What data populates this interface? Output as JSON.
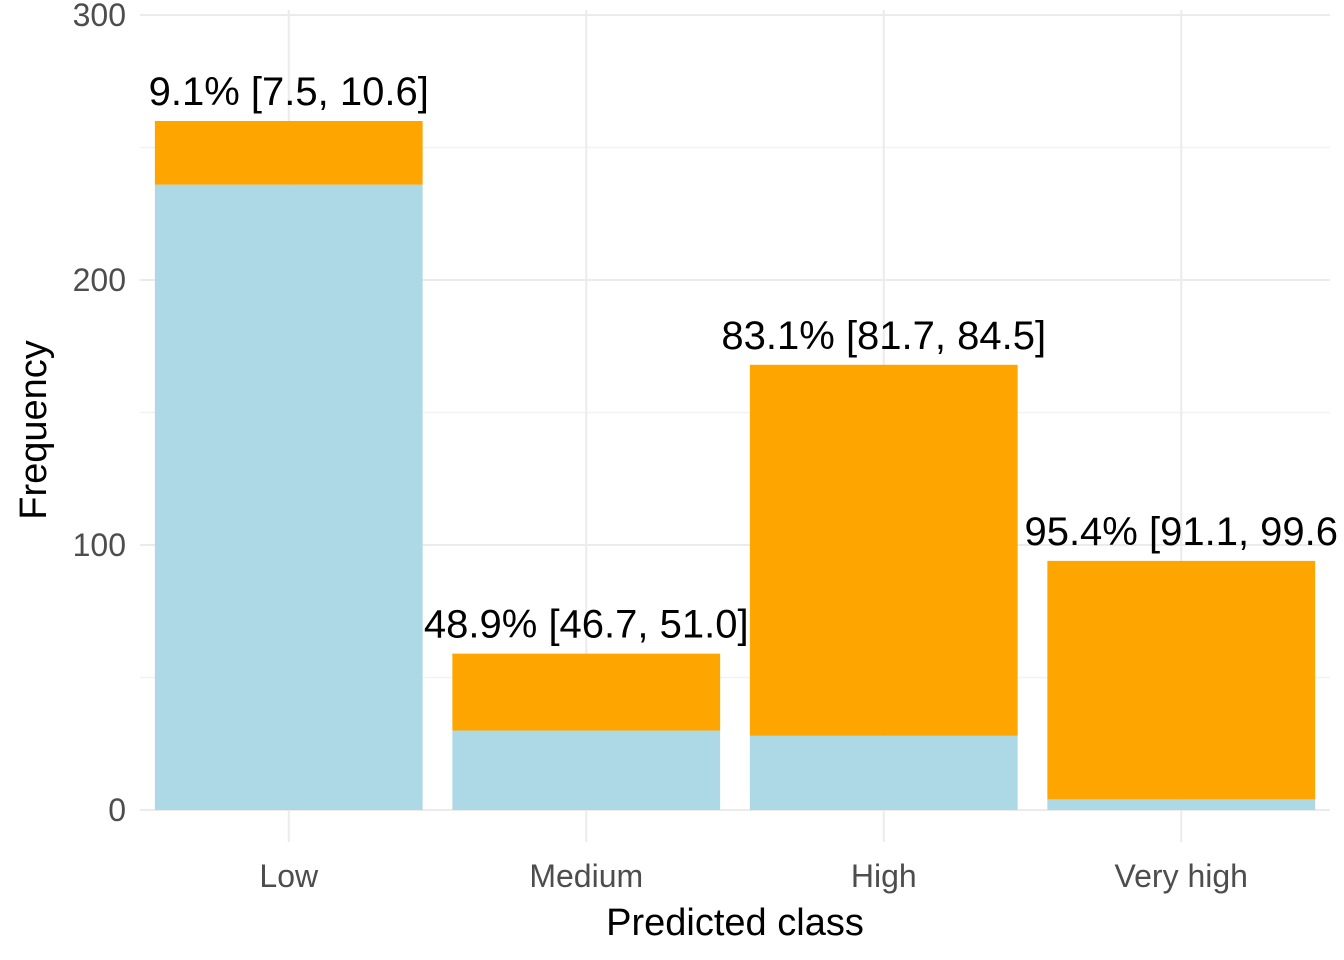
{
  "chart_data": {
    "type": "bar",
    "stacked": true,
    "xlabel": "Predicted class",
    "ylabel": "Frequency",
    "categories": [
      "Low",
      "Medium",
      "High",
      "Very high"
    ],
    "series": [
      {
        "values": [
          236,
          30,
          28,
          4
        ],
        "color": "#add8e6"
      },
      {
        "values": [
          24,
          29,
          140,
          90
        ],
        "color": "#ffa500"
      }
    ],
    "totals": [
      260,
      59,
      168,
      94
    ],
    "annotations": [
      "9.1% [7.5, 10.6]",
      "48.9% [46.7, 51.0]",
      "83.1% [81.7, 84.5]",
      "95.4% [91.1, 99.6"
    ],
    "ylim": [
      -12,
      300
    ],
    "yticks": [
      0,
      100,
      200,
      300
    ],
    "grid": true,
    "legend": "none"
  }
}
